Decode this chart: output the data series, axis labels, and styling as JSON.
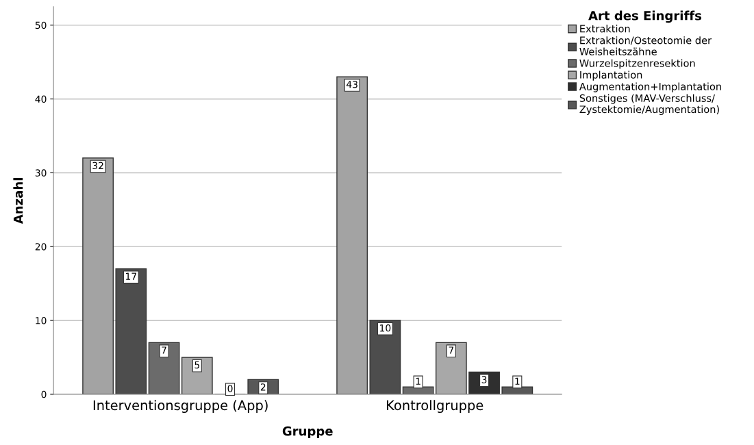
{
  "chart_data": {
    "type": "bar",
    "xlabel": "Gruppe",
    "ylabel": "Anzahl",
    "legend_title": "Art des Eingriffs",
    "categories": [
      "Interventionsgruppe (App)",
      "Kontrollgruppe"
    ],
    "series": [
      {
        "name": "Extraktion",
        "color": "#a3a3a3",
        "values": [
          32,
          43
        ]
      },
      {
        "name": "Extraktion/Osteotomie der Weisheitszähne",
        "color": "#4d4d4d",
        "values": [
          17,
          10
        ]
      },
      {
        "name": "Wurzelspitzenresektion",
        "color": "#6b6b6b",
        "values": [
          7,
          1
        ]
      },
      {
        "name": "Implantation",
        "color": "#a8a8a8",
        "values": [
          5,
          7
        ]
      },
      {
        "name": "Augmentation+Implantation",
        "color": "#2f2f2f",
        "values": [
          0,
          3
        ]
      },
      {
        "name": "Sonstiges (MAV-Verschluss/Zystektomie/Augmentation)",
        "color": "#585858",
        "values": [
          2,
          1
        ]
      }
    ],
    "ylim": [
      0,
      52.5
    ],
    "yticks": [
      0,
      10,
      20,
      30,
      40,
      50
    ],
    "grid": "y",
    "legend": "right",
    "data_labels": true
  }
}
